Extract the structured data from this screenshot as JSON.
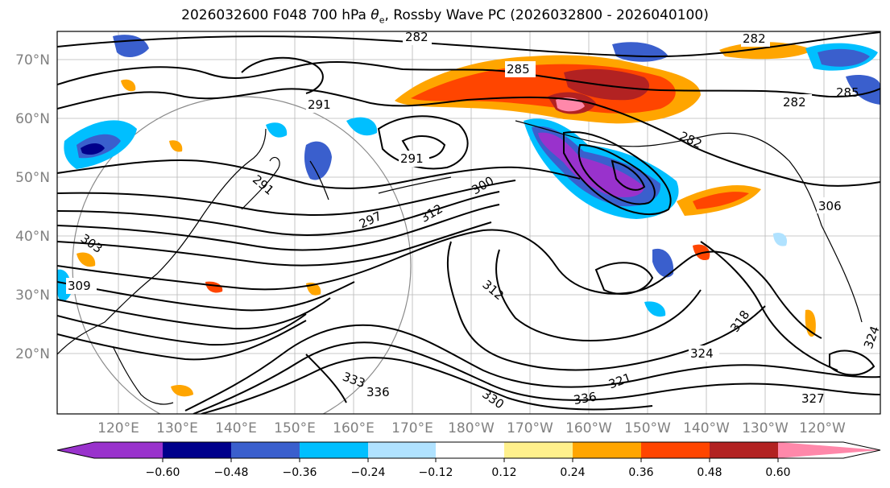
{
  "figure": {
    "title_prefix": "2026032600 F048 700 hPa ",
    "title_symbol": "θ",
    "title_sub": "e",
    "title_suffix": ", Rossby Wave PC (2026032800 - 2026040100)"
  },
  "map": {
    "lat_labels": [
      "70°N",
      "60°N",
      "50°N",
      "40°N",
      "30°N",
      "20°N"
    ],
    "lon_labels": [
      "120°E",
      "130°E",
      "140°E",
      "150°E",
      "160°E",
      "170°E",
      "180°W",
      "170°W",
      "160°W",
      "150°W",
      "140°W",
      "130°W",
      "120°W"
    ],
    "contour_labels": [
      "282",
      "282",
      "285",
      "285",
      "282",
      "291",
      "291",
      "282",
      "291",
      "300",
      "297",
      "312",
      "306",
      "309",
      "303",
      "312",
      "318",
      "324",
      "321",
      "336",
      "330",
      "333",
      "336",
      "327",
      "324"
    ]
  },
  "colorbar": {
    "colors": [
      "#9932cc",
      "#00008b",
      "#3a5fcd",
      "#00bfff",
      "#b0e2ff",
      "#ffffff",
      "#fff08c",
      "#ffa500",
      "#ff4500",
      "#b22222",
      "#ff88aa"
    ],
    "ticks": [
      "−0.60",
      "−0.48",
      "−0.36",
      "−0.24",
      "−0.12",
      "0.12",
      "0.24",
      "0.36",
      "0.48",
      "0.60"
    ]
  }
}
